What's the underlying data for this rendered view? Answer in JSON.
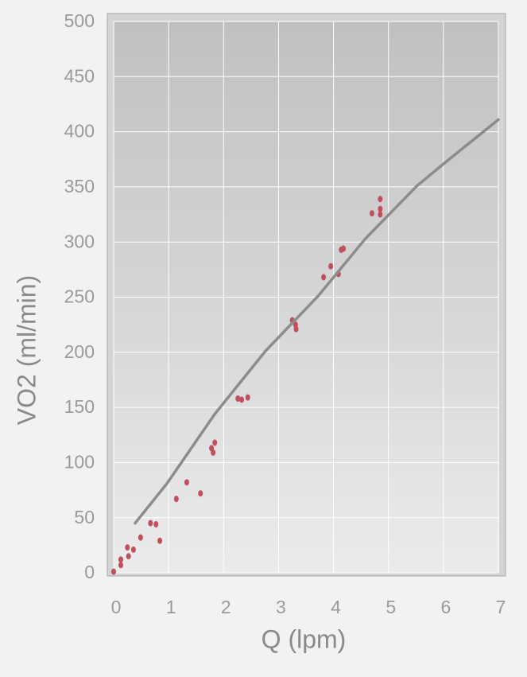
{
  "chart_data": {
    "type": "scatter",
    "x_label": "Q (lpm)",
    "y_label": "VO2 (ml/min)",
    "xlim": [
      0,
      7
    ],
    "xticks": [
      0,
      1,
      2,
      3,
      4,
      5,
      6,
      7
    ],
    "ylim": [
      0,
      500
    ],
    "yticks": [
      0,
      50,
      100,
      150,
      200,
      250,
      300,
      350,
      400,
      450,
      500
    ],
    "grid": true,
    "series": [
      {
        "type": "scatter",
        "color": "#c0505e",
        "x": [
          0,
          0.13,
          0.13,
          0.25,
          0.27,
          0.36,
          0.49,
          0.67,
          0.77,
          0.84,
          1.14,
          1.33,
          1.58,
          1.78,
          1.81,
          1.84,
          2.26,
          2.33,
          2.44,
          3.25,
          3.31,
          3.32,
          3.82,
          3.95,
          4.09,
          4.14,
          4.18,
          4.7,
          4.85,
          4.85,
          4.85
        ],
        "values": [
          1,
          12,
          7,
          23,
          15,
          21,
          32,
          45,
          44,
          29,
          67,
          82,
          72,
          113,
          109,
          118,
          158,
          157,
          159,
          229,
          225,
          221,
          268,
          278,
          271,
          293,
          294,
          326,
          339,
          330,
          325
        ]
      },
      {
        "type": "line",
        "color": "#8c8c8c",
        "x": [
          0.39,
          0.97,
          1.84,
          2.76,
          3.72,
          4.58,
          5.52,
          6.03,
          7.0
        ],
        "values": [
          45,
          81,
          144,
          201,
          251,
          303,
          351,
          372,
          411
        ]
      }
    ]
  }
}
